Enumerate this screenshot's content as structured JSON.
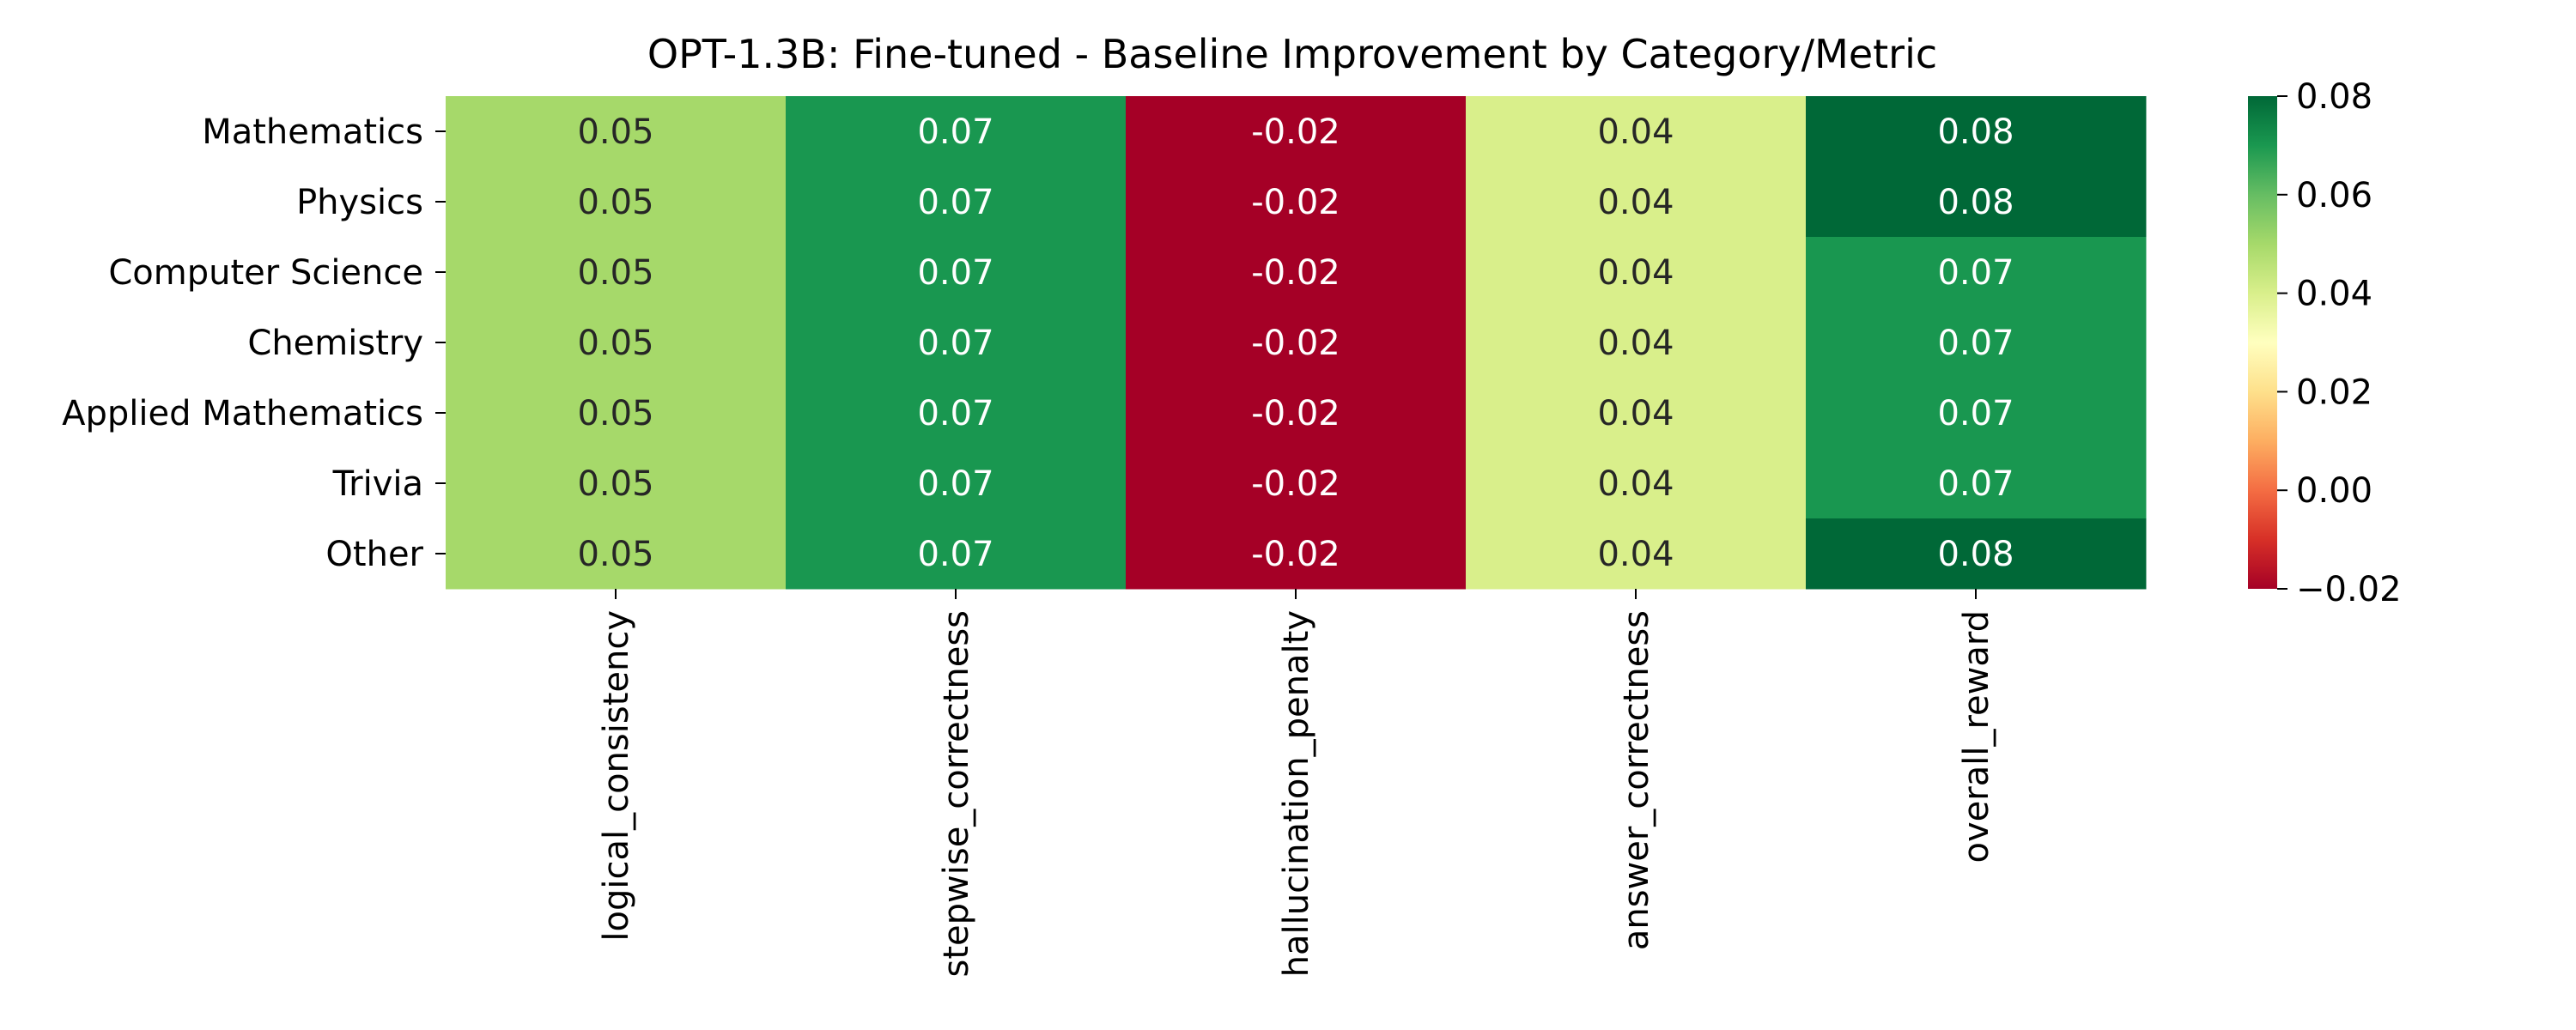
{
  "chart_data": {
    "type": "heatmap",
    "title": "OPT-1.3B: Fine-tuned - Baseline Improvement by Category/Metric",
    "xlabel": "",
    "ylabel": "",
    "rows": [
      "Mathematics",
      "Physics",
      "Computer Science",
      "Chemistry",
      "Applied Mathematics",
      "Trivia",
      "Other"
    ],
    "columns": [
      "logical_consistency",
      "stepwise_correctness",
      "hallucination_penalty",
      "answer_correctness",
      "overall_reward"
    ],
    "values": [
      [
        0.05,
        0.07,
        -0.02,
        0.04,
        0.08
      ],
      [
        0.05,
        0.07,
        -0.02,
        0.04,
        0.08
      ],
      [
        0.05,
        0.07,
        -0.02,
        0.04,
        0.07
      ],
      [
        0.05,
        0.07,
        -0.02,
        0.04,
        0.07
      ],
      [
        0.05,
        0.07,
        -0.02,
        0.04,
        0.07
      ],
      [
        0.05,
        0.07,
        -0.02,
        0.04,
        0.07
      ],
      [
        0.05,
        0.07,
        -0.02,
        0.04,
        0.08
      ]
    ],
    "cell_labels": [
      [
        "0.05",
        "0.07",
        "-0.02",
        "0.04",
        "0.08"
      ],
      [
        "0.05",
        "0.07",
        "-0.02",
        "0.04",
        "0.08"
      ],
      [
        "0.05",
        "0.07",
        "-0.02",
        "0.04",
        "0.07"
      ],
      [
        "0.05",
        "0.07",
        "-0.02",
        "0.04",
        "0.07"
      ],
      [
        "0.05",
        "0.07",
        "-0.02",
        "0.04",
        "0.07"
      ],
      [
        "0.05",
        "0.07",
        "-0.02",
        "0.04",
        "0.07"
      ],
      [
        "0.05",
        "0.07",
        "-0.02",
        "0.04",
        "0.08"
      ]
    ],
    "colormap": "RdYlGn",
    "color_range": [
      -0.02,
      0.08
    ],
    "colorbar": {
      "placement": "right",
      "ticks": [
        -0.02,
        0.0,
        0.02,
        0.04,
        0.06,
        0.08
      ],
      "tick_labels": [
        "−0.02",
        "0.00",
        "0.02",
        "0.04",
        "0.06",
        "0.08"
      ]
    },
    "cell_colors": [
      [
        "#a6d96a",
        "#199750",
        "#a50026",
        "#d9ef8b",
        "#006837"
      ],
      [
        "#a6d96a",
        "#199750",
        "#a50026",
        "#d9ef8b",
        "#006837"
      ],
      [
        "#a6d96a",
        "#199750",
        "#a50026",
        "#d9ef8b",
        "#199750"
      ],
      [
        "#a6d96a",
        "#199750",
        "#a50026",
        "#d9ef8b",
        "#199750"
      ],
      [
        "#a6d96a",
        "#199750",
        "#a50026",
        "#d9ef8b",
        "#199750"
      ],
      [
        "#a6d96a",
        "#199750",
        "#a50026",
        "#d9ef8b",
        "#199750"
      ],
      [
        "#a6d96a",
        "#199750",
        "#a50026",
        "#d9ef8b",
        "#006837"
      ]
    ],
    "grid": false
  }
}
